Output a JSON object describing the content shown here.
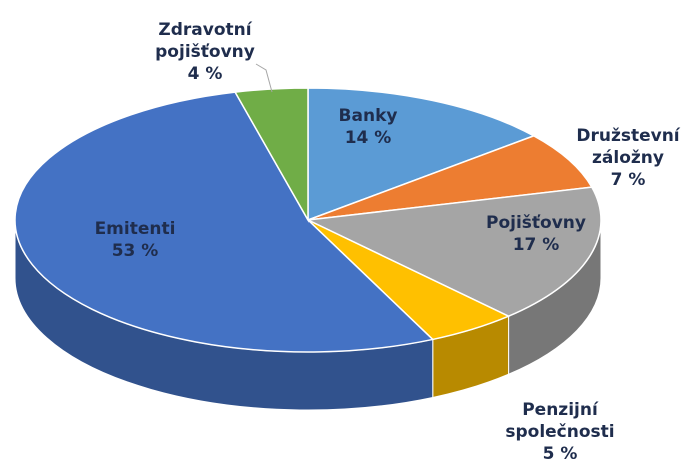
{
  "chart_data": {
    "type": "pie",
    "categories": [
      "Banky",
      "Družstevní záložny",
      "Pojišťovny",
      "Penzijní společnosti",
      "Emitenti",
      "Zdravotní pojišťovny"
    ],
    "values": [
      14,
      7,
      17,
      5,
      53,
      4
    ],
    "value_labels": [
      "14 %",
      "7 %",
      "17 %",
      "5 %",
      "53 %",
      "4 %"
    ],
    "colors": [
      "#5b9bd5",
      "#ed7d31",
      "#a5a5a5",
      "#ffc000",
      "#4472c4",
      "#70ad47"
    ]
  }
}
